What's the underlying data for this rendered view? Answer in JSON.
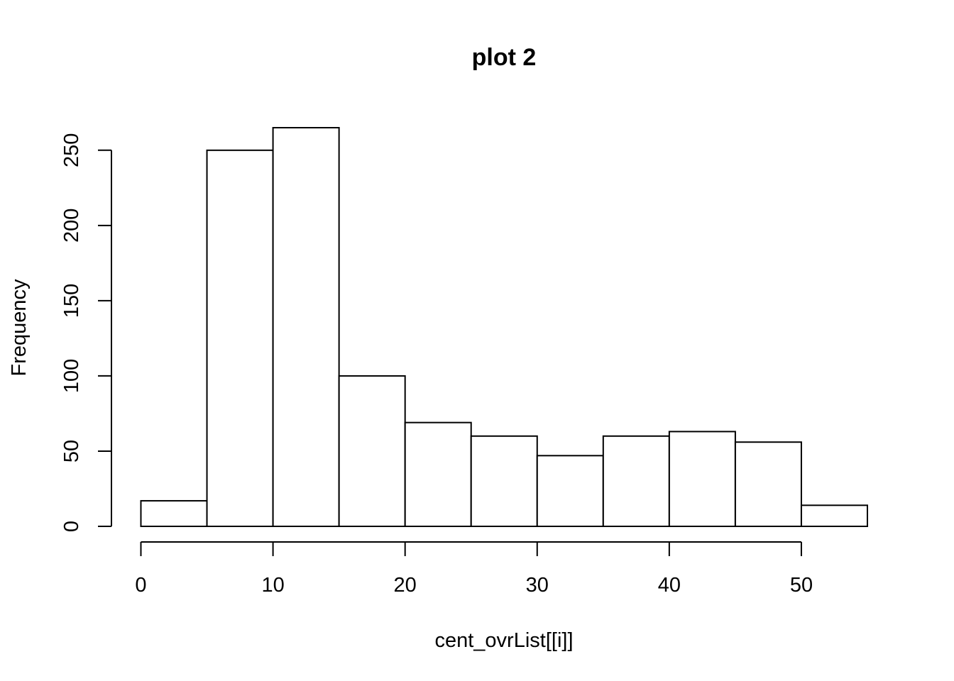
{
  "chart_data": {
    "type": "bar",
    "title": "plot 2",
    "xlabel": "cent_ovrList[[i]]",
    "ylabel": "Frequency",
    "bin_edges": [
      0,
      5,
      10,
      15,
      20,
      25,
      30,
      35,
      40,
      45,
      50,
      55
    ],
    "values": [
      17,
      250,
      265,
      100,
      69,
      60,
      47,
      60,
      63,
      56,
      14
    ],
    "x_ticks": [
      0,
      10,
      20,
      30,
      40,
      50
    ],
    "y_ticks": [
      0,
      50,
      100,
      150,
      200,
      250
    ],
    "xlim": [
      0,
      55
    ],
    "ylim": [
      0,
      265
    ],
    "grid": false,
    "colors": {
      "bar_fill": "#ffffff",
      "bar_stroke": "#000000"
    }
  }
}
